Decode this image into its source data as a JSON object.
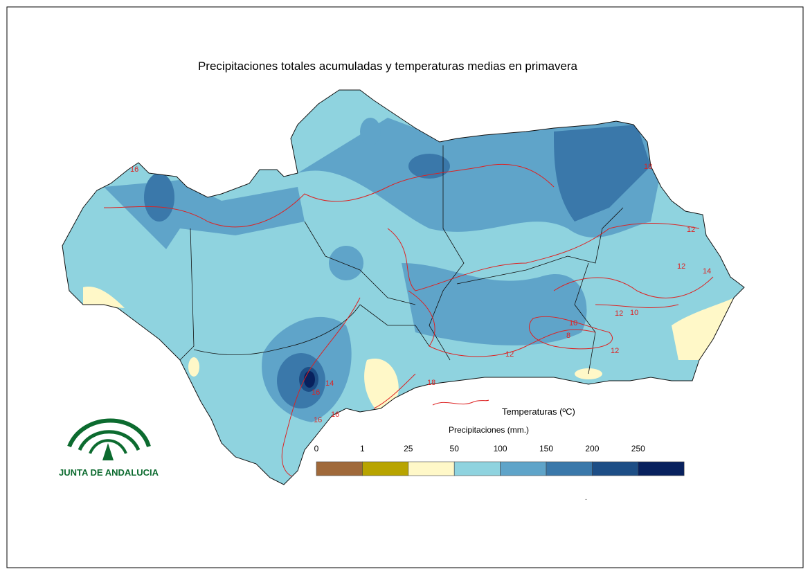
{
  "title": "Precipitaciones totales acumuladas y temperaturas medias en primavera",
  "legend": {
    "temperature_label": "Temperaturas (ºC)",
    "precipitation_label": "Precipitaciones (mm.)",
    "breaks": [
      "0",
      "1",
      "25",
      "50",
      "100",
      "150",
      "200",
      "250"
    ],
    "colors": [
      "#a0693a",
      "#b8a400",
      "#fff8c8",
      "#8fd3df",
      "#5fa4c9",
      "#3a78aa",
      "#1d4e86",
      "#08215e"
    ]
  },
  "contour_labels": [
    "16",
    "18",
    "12",
    "14",
    "12",
    "10",
    "8",
    "12",
    "10",
    "12",
    "12",
    "14",
    "16",
    "18",
    "16",
    "16"
  ],
  "logo": {
    "text": "JUNTA DE ANDALUCIA"
  }
}
